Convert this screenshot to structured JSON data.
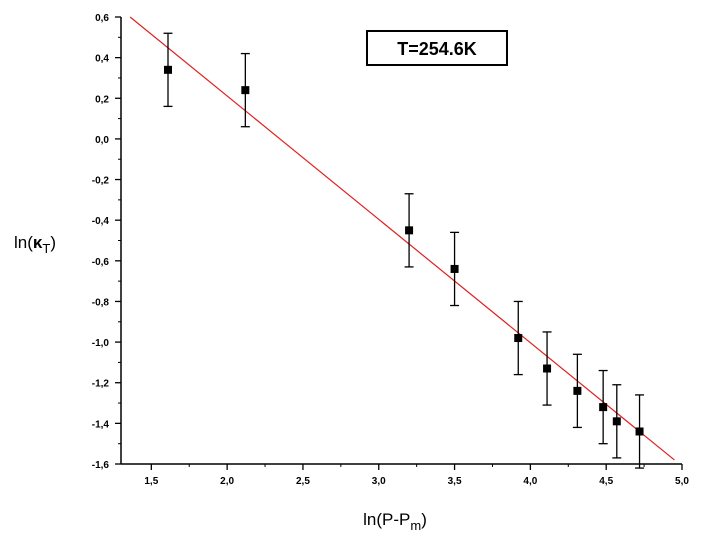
{
  "chart_data": {
    "type": "scatter",
    "title": "",
    "xlabel": "ln(P-P",
    "xlabel_sub": "m",
    "xlabel_close": ")",
    "ylabel": "ln(",
    "ylabel_symbol": "κ",
    "ylabel_sub": "T",
    "ylabel_close": ")",
    "xlim": [
      1.3,
      5.0
    ],
    "ylim": [
      -1.6,
      0.6
    ],
    "xticks": [
      1.5,
      2.0,
      2.5,
      3.0,
      3.5,
      4.0,
      4.5,
      5.0
    ],
    "xtick_labels": [
      "1,5",
      "2,0",
      "2,5",
      "3,0",
      "3,5",
      "4,0",
      "4,5",
      "5,0"
    ],
    "yticks": [
      -1.6,
      -1.4,
      -1.2,
      -1.0,
      -0.8,
      -0.6,
      -0.4,
      -0.2,
      0.0,
      0.2,
      0.4,
      0.6
    ],
    "ytick_labels": [
      "-1,6",
      "-1,4",
      "-1,2",
      "-1,0",
      "-0,8",
      "-0,6",
      "-0,4",
      "-0,2",
      "0,0",
      "0,2",
      "0,4",
      "0,6"
    ],
    "grid": false,
    "annotation": "T=254.6K",
    "series": [
      {
        "kind": "points-with-error",
        "color": "#000000",
        "x": [
          1.61,
          2.12,
          3.2,
          3.5,
          3.92,
          4.11,
          4.31,
          4.48,
          4.57,
          4.72
        ],
        "y": [
          0.34,
          0.24,
          -0.45,
          -0.64,
          -0.98,
          -1.13,
          -1.24,
          -1.32,
          -1.39,
          -1.44
        ],
        "err": [
          0.18,
          0.18,
          0.18,
          0.18,
          0.18,
          0.18,
          0.18,
          0.18,
          0.18,
          0.18
        ]
      },
      {
        "kind": "fit-line",
        "color": "#e02020",
        "x": [
          1.36,
          4.95
        ],
        "y": [
          0.6,
          -1.58
        ]
      }
    ]
  }
}
